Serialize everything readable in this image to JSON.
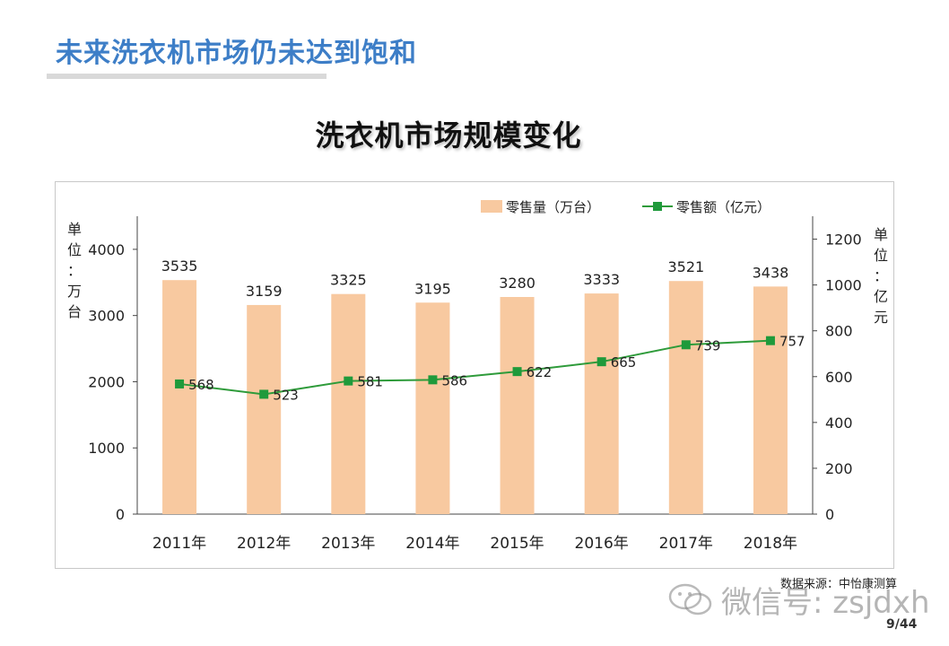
{
  "slide": {
    "title": "未来洗衣机市场仍未达到饱和",
    "source": "数据来源：中怡康测算",
    "page": "9/44"
  },
  "watermark": {
    "text": "微信号: zsjdxh",
    "icon": "wechat-logo-icon"
  },
  "colors": {
    "title": "#3d7ec7",
    "bar": "#f8c9a0",
    "line": "#2e9b3a",
    "marker": "#1f9a3b"
  },
  "chart_data": {
    "type": "bar",
    "title": "洗衣机市场规模变化",
    "categories": [
      "2011年",
      "2012年",
      "2013年",
      "2014年",
      "2015年",
      "2016年",
      "2017年",
      "2018年"
    ],
    "series": [
      {
        "name": "零售量（万台）",
        "type": "bar",
        "axis": "left",
        "values": [
          3535,
          3159,
          3325,
          3195,
          3280,
          3333,
          3521,
          3438
        ]
      },
      {
        "name": "零售额（亿元）",
        "type": "line",
        "axis": "right",
        "values": [
          568,
          523,
          581,
          586,
          622,
          665,
          739,
          757
        ]
      }
    ],
    "y_left": {
      "label": [
        "单",
        "位",
        "：",
        "万",
        "台"
      ],
      "range": [
        0,
        4500
      ],
      "ticks": [
        0,
        1000,
        2000,
        3000,
        4000
      ]
    },
    "y_right": {
      "label": [
        "单",
        "位",
        "：",
        "亿",
        "元"
      ],
      "range": [
        0,
        1300
      ],
      "ticks": [
        0,
        200,
        400,
        600,
        800,
        1000,
        1200
      ]
    },
    "legend_position": "top-right",
    "grid": false
  }
}
